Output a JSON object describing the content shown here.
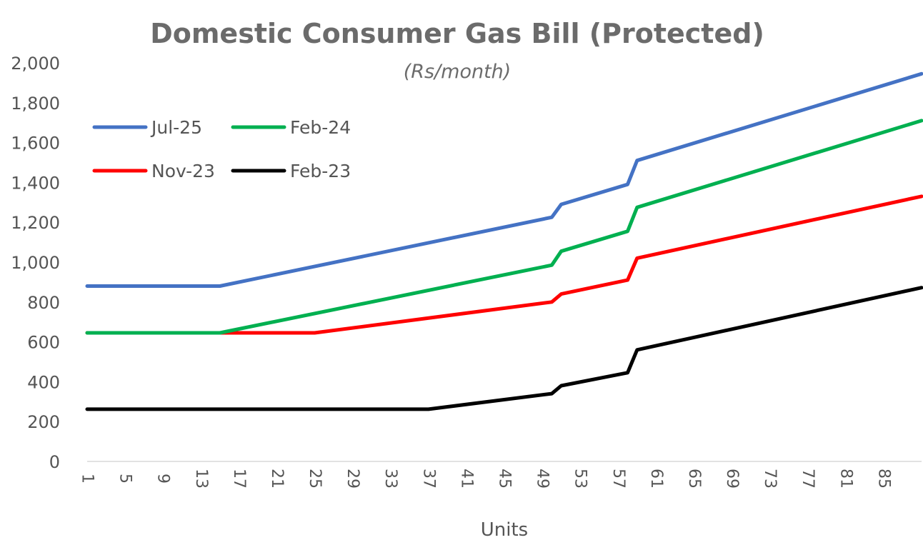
{
  "chart_data": {
    "type": "line",
    "title": "Domestic Consumer Gas Bill (Protected)",
    "subtitle": "(Rs/month)",
    "xlabel": "Units",
    "ylabel": "",
    "ylim": [
      0,
      2000
    ],
    "y_ticks": [
      "0",
      "200",
      "400",
      "600",
      "800",
      "1,000",
      "1,200",
      "1,400",
      "1,600",
      "1,800",
      "2,000"
    ],
    "x_ticks": [
      "1",
      "5",
      "9",
      "13",
      "17",
      "21",
      "25",
      "29",
      "33",
      "37",
      "41",
      "45",
      "49",
      "53",
      "57",
      "61",
      "65",
      "69",
      "73",
      "77",
      "81",
      "85"
    ],
    "xlim": [
      1,
      89
    ],
    "grid": false,
    "legend_position": "top-left",
    "series": [
      {
        "name": "Jul-25",
        "color": "#4472C4",
        "points": [
          [
            1,
            880
          ],
          [
            15,
            880
          ],
          [
            50,
            1225
          ],
          [
            51,
            1290
          ],
          [
            58,
            1390
          ],
          [
            59,
            1510
          ],
          [
            89,
            1945
          ]
        ]
      },
      {
        "name": "Feb-24",
        "color": "#00B050",
        "points": [
          [
            1,
            645
          ],
          [
            15,
            645
          ],
          [
            50,
            985
          ],
          [
            51,
            1055
          ],
          [
            58,
            1155
          ],
          [
            59,
            1275
          ],
          [
            89,
            1710
          ]
        ]
      },
      {
        "name": "Nov-23",
        "color": "#FF0000",
        "points": [
          [
            1,
            645
          ],
          [
            25,
            645
          ],
          [
            50,
            800
          ],
          [
            51,
            840
          ],
          [
            58,
            910
          ],
          [
            59,
            1020
          ],
          [
            89,
            1330
          ]
        ]
      },
      {
        "name": "Feb-23",
        "color": "#000000",
        "points": [
          [
            1,
            262
          ],
          [
            37,
            262
          ],
          [
            50,
            340
          ],
          [
            51,
            380
          ],
          [
            58,
            445
          ],
          [
            59,
            560
          ],
          [
            89,
            872
          ]
        ]
      }
    ],
    "legend_rows": [
      [
        "Jul-25",
        "Feb-24"
      ],
      [
        "Nov-23",
        "Feb-23"
      ]
    ]
  }
}
